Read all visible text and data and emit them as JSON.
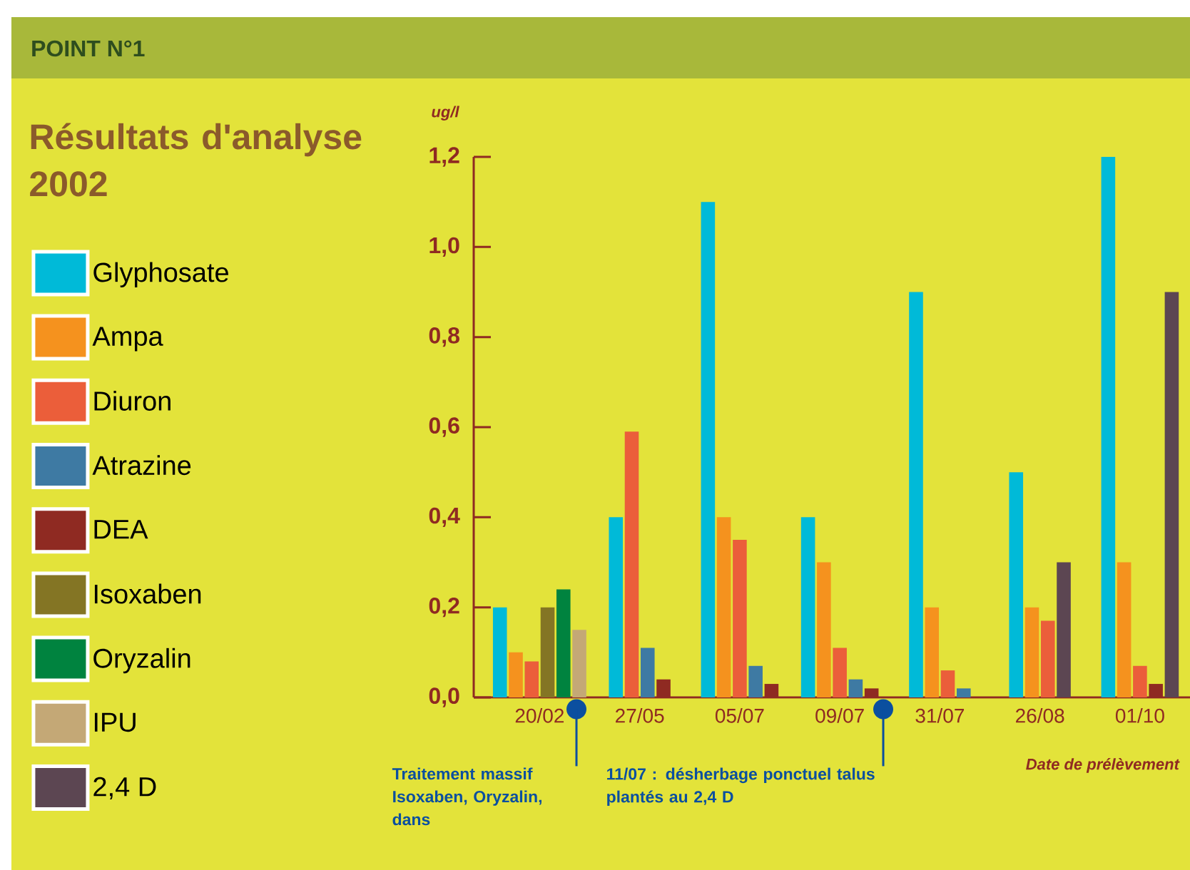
{
  "chart_data": {
    "type": "bar",
    "title": "Résultats d'analyse 2002",
    "subtitle": "POINT N°1",
    "xlabel": "Date de prélèvement",
    "ylabel": "ug/l",
    "categories": [
      "20/02",
      "27/05",
      "05/07",
      "09/07",
      "31/07",
      "26/08",
      "01/10"
    ],
    "series": [
      {
        "name": "Glyphosate",
        "color": "#00bad8",
        "values": [
          0.2,
          0.4,
          1.1,
          0.4,
          0.9,
          0.5,
          1.2
        ]
      },
      {
        "name": "Ampa",
        "color": "#f5921e",
        "values": [
          0.1,
          null,
          0.4,
          0.3,
          0.2,
          0.2,
          0.3
        ]
      },
      {
        "name": "Diuron",
        "color": "#eb5e3a",
        "values": [
          0.08,
          0.59,
          0.35,
          0.11,
          0.06,
          0.17,
          0.07
        ]
      },
      {
        "name": "Atrazine",
        "color": "#3e7aa3",
        "values": [
          null,
          0.11,
          0.07,
          0.04,
          0.02,
          null,
          null
        ]
      },
      {
        "name": "DEA",
        "color": "#8f2a22",
        "values": [
          null,
          0.04,
          0.03,
          0.02,
          null,
          null,
          0.03
        ]
      },
      {
        "name": "Isoxaben",
        "color": "#847524",
        "values": [
          0.2,
          null,
          null,
          null,
          null,
          null,
          null
        ]
      },
      {
        "name": "Oryzalin",
        "color": "#00833f",
        "values": [
          0.24,
          null,
          null,
          null,
          null,
          null,
          null
        ]
      },
      {
        "name": "IPU",
        "color": "#c4a876",
        "values": [
          0.15,
          null,
          null,
          null,
          null,
          null,
          null
        ]
      },
      {
        "name": "2,4 D",
        "color": "#5c4652",
        "values": [
          null,
          null,
          null,
          null,
          null,
          0.3,
          0.9
        ]
      }
    ],
    "ylim": [
      0,
      1.2
    ],
    "yticks": [
      {
        "value": 0,
        "label": "0,0"
      },
      {
        "value": 0.2,
        "label": "0,2"
      },
      {
        "value": 0.4,
        "label": "0,4"
      },
      {
        "value": 0.6,
        "label": "0,6"
      },
      {
        "value": 0.8,
        "label": "0,8"
      },
      {
        "value": 1.0,
        "label": "1,0"
      },
      {
        "value": 1.2,
        "label": "1,2"
      }
    ],
    "legend": "left",
    "annotations": [
      "Traitement massif Isoxaben, Oryzalin, dans",
      "11/07 : désherbage ponctuel talus plantés au 2,4 D"
    ]
  }
}
